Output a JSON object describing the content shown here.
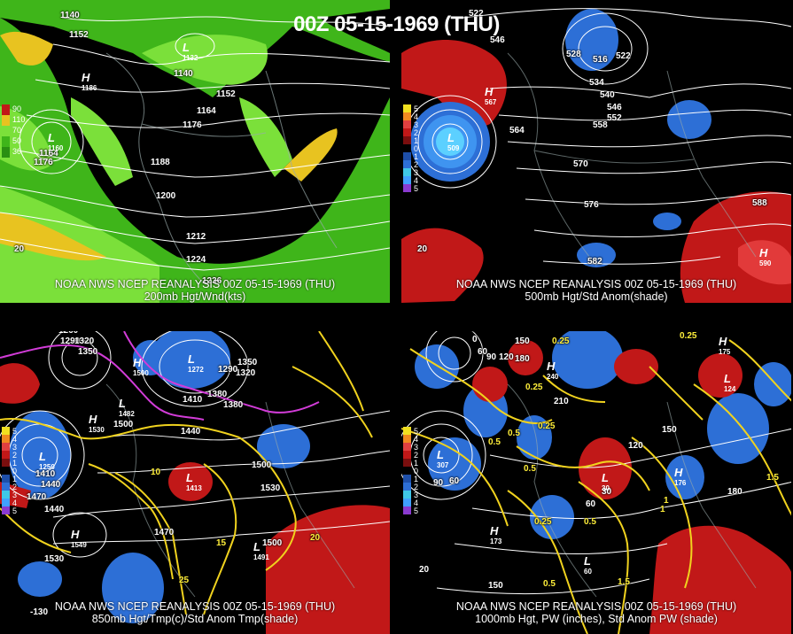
{
  "title": "00Z 05-15-1969 (THU)",
  "colors": {
    "wind_green": "#3fb51a",
    "wind_light": "#7be03a",
    "wind_yellow": "#e8c320",
    "pos_anom": "#c11818",
    "neg_anom": "#2d6fd6",
    "contour": "#ffffff",
    "temp_contour": "#f0d21e",
    "cold_contour": "#d23cd8"
  },
  "panels": [
    {
      "id": "tl",
      "caption_line1": "NOAA NWS NCEP REANALYSIS 00Z 05-15-1969 (THU)",
      "caption_line2": "200mb Hgt/Wnd(kts)",
      "legend": [
        "90",
        "110",
        "70",
        "50",
        "30"
      ],
      "contour_labels": [
        "1140",
        "1152",
        "1140",
        "1152",
        "1164",
        "1176",
        "1188",
        "1200",
        "1212",
        "1224",
        "1236",
        "1176",
        "1164",
        "20"
      ],
      "centers": [
        {
          "type": "H",
          "value": "1186"
        },
        {
          "type": "L",
          "value": "1132"
        },
        {
          "type": "L",
          "value": "1160"
        }
      ]
    },
    {
      "id": "tr",
      "caption_line1": "NOAA NWS NCEP REANALYSIS 00Z 05-15-1969 (THU)",
      "caption_line2": "500mb Hgt/Std Anom(shade)",
      "legend": [
        "5",
        "4",
        "3",
        "2",
        "1",
        "0",
        "1",
        "2",
        "3",
        "4",
        "5"
      ],
      "contour_labels": [
        "522",
        "546",
        "528",
        "516",
        "522",
        "534",
        "540",
        "546",
        "552",
        "558",
        "564",
        "570",
        "576",
        "582",
        "588",
        "20"
      ],
      "centers": [
        {
          "type": "H",
          "value": "567"
        },
        {
          "type": "L",
          "value": "509"
        },
        {
          "type": "H",
          "value": "590"
        }
      ]
    },
    {
      "id": "bl",
      "caption_line1": "NOAA NWS NCEP REANALYSIS 00Z 05-15-1969 (THU)",
      "caption_line2": "850mb Hgt/Tmp(c)/Std Anom Tmp(shade)",
      "legend": [
        "5",
        "4",
        "3",
        "2",
        "1",
        "0",
        "1",
        "2",
        "3",
        "4",
        "5"
      ],
      "contour_labels": [
        "1260",
        "1290",
        "1320",
        "1350",
        "1380",
        "1410",
        "1440",
        "1470",
        "1500",
        "1530",
        "1350",
        "1320",
        "1290",
        "1380",
        "1410",
        "1440",
        "1500",
        "1530",
        "1500",
        "1470",
        "1440",
        "10",
        "15",
        "20",
        "25",
        "-130"
      ],
      "centers": [
        {
          "type": "H",
          "value": "1530"
        },
        {
          "type": "L",
          "value": "1482"
        },
        {
          "type": "H",
          "value": "1500"
        },
        {
          "type": "L",
          "value": "1250"
        },
        {
          "type": "L",
          "value": "1272"
        },
        {
          "type": "L",
          "value": "1413"
        },
        {
          "type": "H",
          "value": "1549"
        },
        {
          "type": "L",
          "value": "1491"
        }
      ]
    },
    {
      "id": "br",
      "caption_line1": "NOAA NWS NCEP REANALYSIS 00Z 05-15-1969 (THU)",
      "caption_line2": "1000mb Hgt, PW (inches), Std Anom PW (shade)",
      "legend": [
        "5",
        "4",
        "3",
        "2",
        "1",
        "0",
        "1",
        "2",
        "3",
        "4",
        "5"
      ],
      "contour_labels": [
        "30",
        "0",
        "60",
        "90",
        "120",
        "150",
        "180",
        "210",
        "0.25",
        "0.5",
        "0.25",
        "0.25",
        "0.5",
        "1",
        "1.5",
        "90",
        "60",
        "30",
        "120",
        "150",
        "180",
        "0.5",
        "0.25",
        "1",
        "0.5",
        "1.5",
        "0.25",
        "0.5",
        "60",
        "150",
        "20"
      ],
      "centers": [
        {
          "type": "L",
          "value": "307"
        },
        {
          "type": "H",
          "value": "240"
        },
        {
          "type": "H",
          "value": "175"
        },
        {
          "type": "L",
          "value": "30"
        },
        {
          "type": "L",
          "value": "124"
        },
        {
          "type": "H",
          "value": "176"
        },
        {
          "type": "H",
          "value": "173"
        },
        {
          "type": "L",
          "value": "60"
        }
      ]
    }
  ]
}
